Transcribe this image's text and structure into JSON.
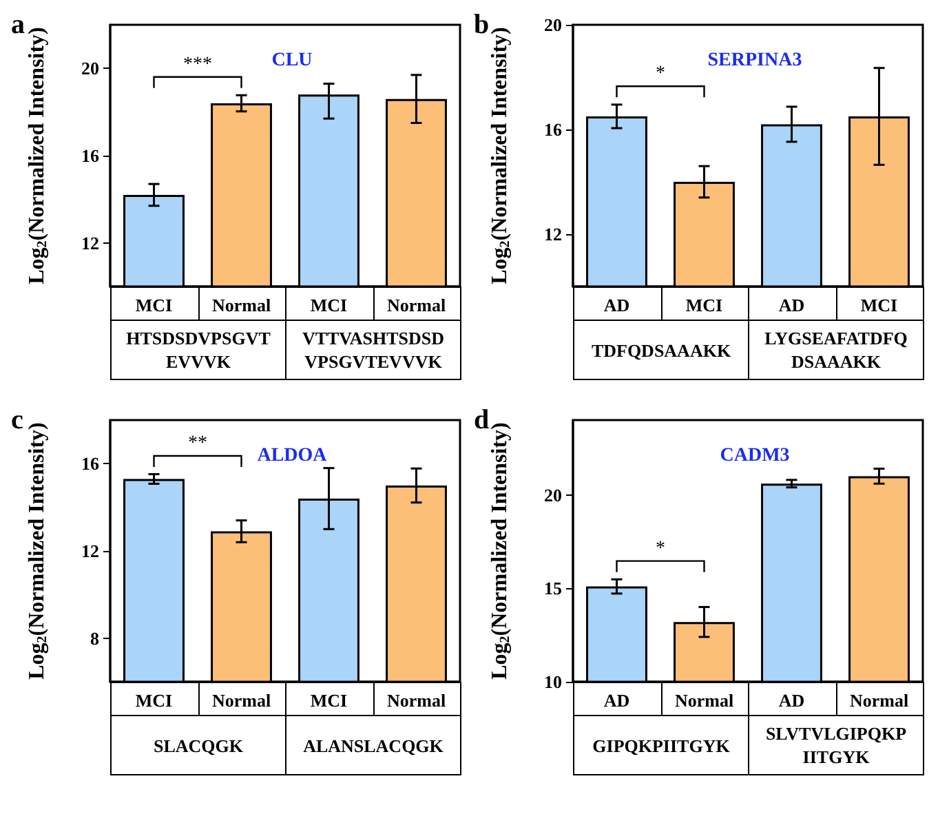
{
  "chart_data": [
    {
      "type": "bar",
      "title": "CLU",
      "ylabel": "Log$_{2}$(Normalized Intensity)",
      "categories": [
        "MCI",
        "Normal",
        "MCI",
        "Normal"
      ],
      "values": [
        14.2,
        18.4,
        18.8,
        18.6
      ],
      "errors": [
        0.5,
        0.37,
        [
          17.7,
          19.3
        ],
        1.1
      ],
      "colors": [
        "#aad4f8",
        "#fcbf78",
        "#aad4f8",
        "#fcbf78"
      ],
      "ylim": [
        10,
        22
      ],
      "yticks": [
        12,
        16,
        20
      ],
      "annotations": [
        "a",
        "***",
        "HTSDSDVPSGVTEVVVK",
        "VTTVASHTSDSDVPSGVTEVVVK"
      ]
    },
    {
      "type": "bar",
      "title": "SERPINA3",
      "ylabel": "Log$_{2}$(Normalized Intensity)",
      "categories": [
        "AD",
        "MCI",
        "AD",
        "MCI"
      ],
      "values": [
        16.5,
        14.0,
        16.2,
        16.5
      ],
      "errors": [
        0.45,
        0.6,
        0.67,
        1.85
      ],
      "colors": [
        "#aad4f8",
        "#fcbf78",
        "#aad4f8",
        "#fcbf78"
      ],
      "ylim": [
        10,
        20
      ],
      "yticks": [
        12,
        16,
        20
      ],
      "annotations": [
        "b",
        "*",
        "TDFQDSAAAKK",
        "LYGSEAFATDFQDSAAAKK"
      ]
    },
    {
      "type": "bar",
      "title": "ALDOA",
      "ylabel": "Log$_{2}$(Normalized Intensity)",
      "categories": [
        "MCI",
        "Normal",
        "MCI",
        "Normal"
      ],
      "values": [
        15.3,
        12.9,
        14.4,
        15.0
      ],
      "errors": [
        0.22,
        0.5,
        1.4,
        0.78
      ],
      "colors": [
        "#aad4f8",
        "#fcbf78",
        "#aad4f8",
        "#fcbf78"
      ],
      "ylim": [
        6,
        18
      ],
      "yticks": [
        8,
        12,
        16
      ],
      "annotations": [
        "c",
        "**",
        "SLACQGK",
        "ALANSLACQGK"
      ]
    },
    {
      "type": "bar",
      "title": "CADM3",
      "ylabel": "Log$_{2}$(Normalized Intensity)",
      "categories": [
        "AD",
        "Normal",
        "AD",
        "Normal"
      ],
      "values": [
        15.1,
        13.2,
        20.6,
        21.0
      ],
      "errors": [
        0.38,
        0.8,
        0.2,
        0.4
      ],
      "colors": [
        "#aad4f8",
        "#fcbf78",
        "#aad4f8",
        "#fcbf78"
      ],
      "ylim": [
        10,
        24
      ],
      "yticks": [
        10,
        15,
        20
      ],
      "annotations": [
        "d",
        "*",
        "GIPQKPIITGYK",
        "SLVTVLGIPQKPIITGYK"
      ]
    }
  ]
}
